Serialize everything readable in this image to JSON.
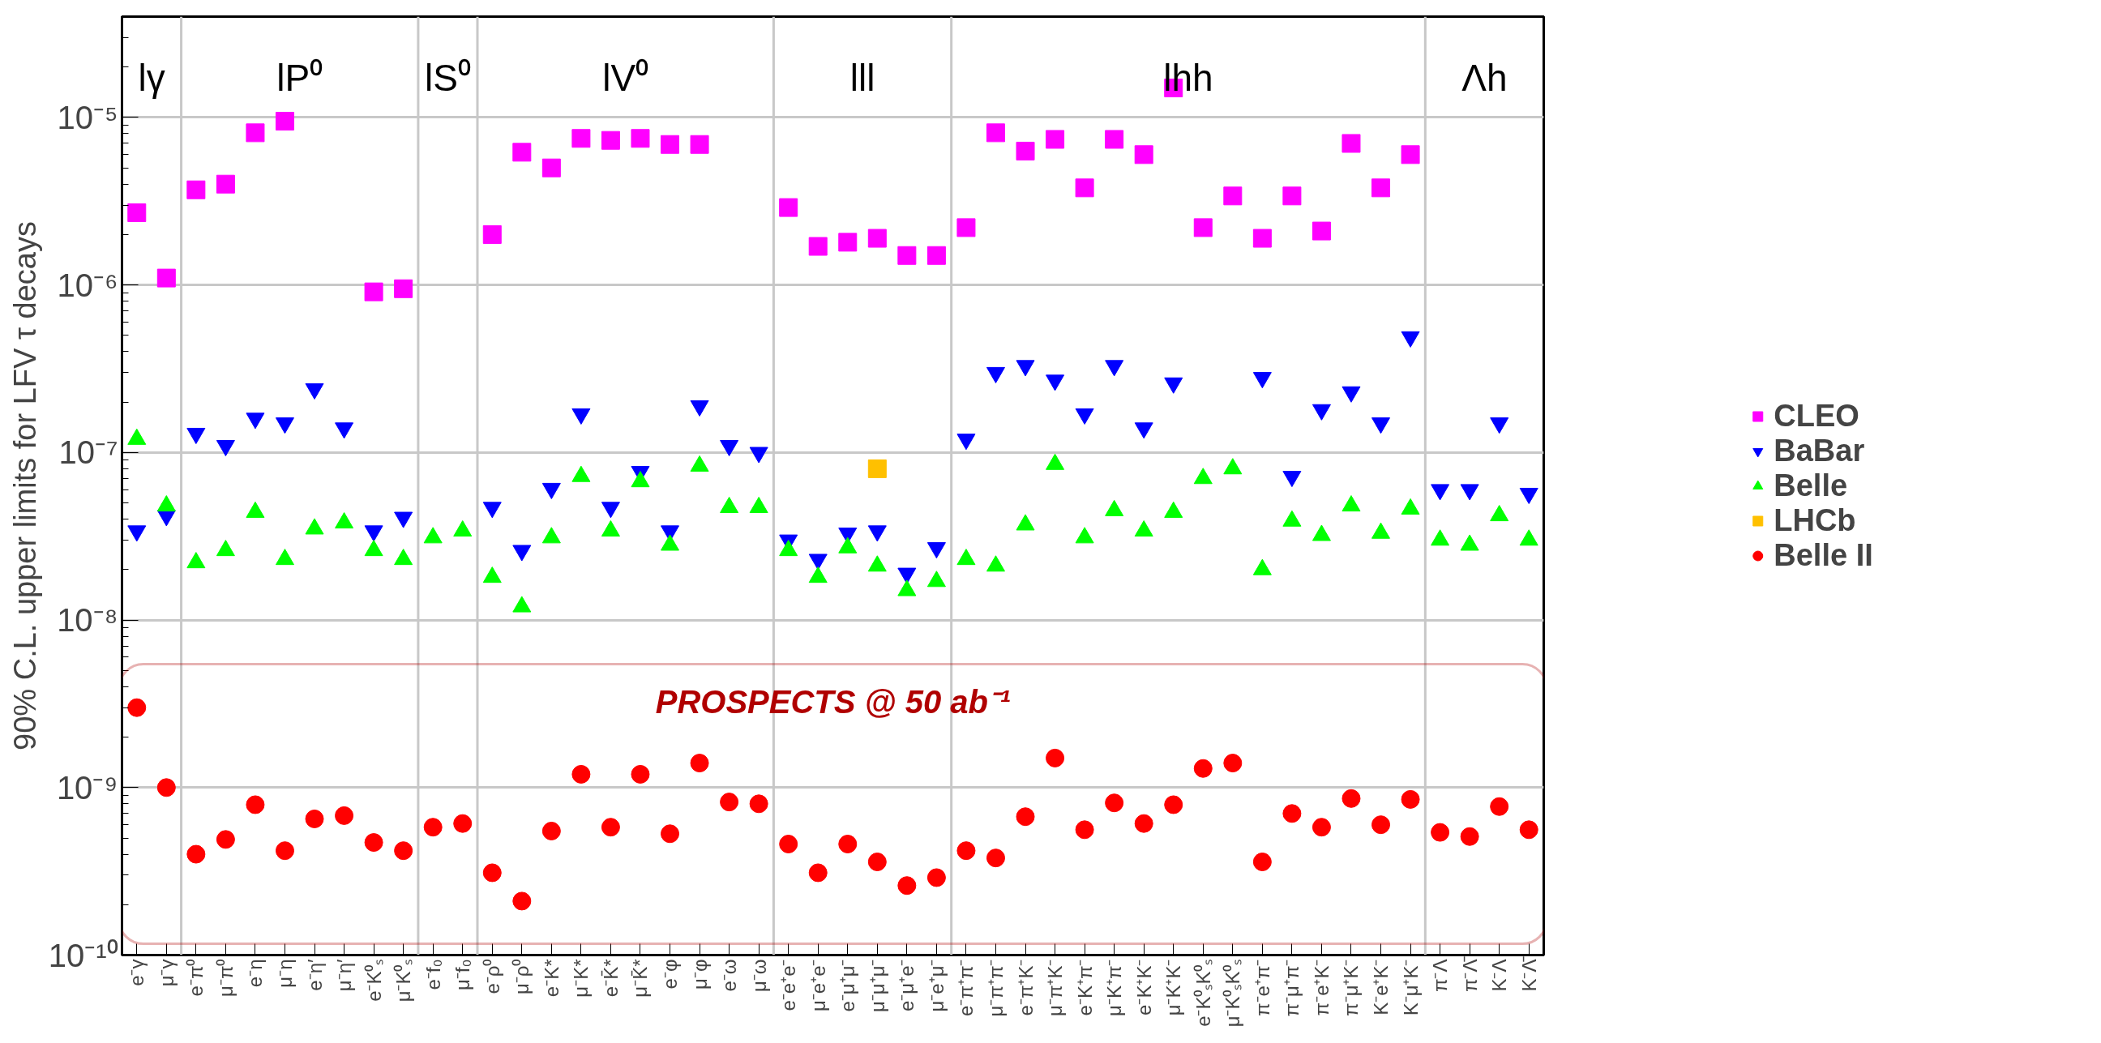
{
  "chart_data": {
    "type": "scatter",
    "ylabel": "90% C.L. upper limits for LFV τ decays",
    "categories": [
      "e⁻γ",
      "μ⁻γ",
      "e⁻π⁰",
      "μ⁻π⁰",
      "e⁻η",
      "μ⁻η",
      "e⁻η′",
      "μ⁻η′",
      "e⁻K⁰ₛ",
      "μ⁻K⁰ₛ",
      "e⁻f₀",
      "μ⁻f₀",
      "e⁻ρ⁰",
      "μ⁻ρ⁰",
      "e⁻K*",
      "μ⁻K*",
      "e⁻K̄*",
      "μ⁻K̄*",
      "e⁻φ",
      "μ⁻φ",
      "e⁻ω",
      "μ⁻ω",
      "e⁻e⁺e⁻",
      "μ⁻e⁺e⁻",
      "e⁻μ⁺μ⁻",
      "μ⁻μ⁺μ⁻",
      "e⁻μ⁺e⁻",
      "μ⁻e⁺μ⁻",
      "e⁻π⁺π⁻",
      "μ⁻π⁺π⁻",
      "e⁻π⁺K⁻",
      "μ⁻π⁺K⁻",
      "e⁻K⁺π⁻",
      "μ⁻K⁺π⁻",
      "e⁻K⁺K⁻",
      "μ⁻K⁺K⁻",
      "e⁻K⁰ₛK⁰ₛ",
      "μ⁻K⁰ₛK⁰ₛ",
      "π⁻e⁺π⁻",
      "π⁻μ⁺π⁻",
      "π⁻e⁺K⁻",
      "π⁻μ⁺K⁻",
      "K⁻e⁺K⁻",
      "K⁻μ⁺K⁻",
      "π⁻Λ",
      "π⁻Λ̄",
      "K⁻Λ",
      "K⁻Λ̄"
    ],
    "series": [
      {
        "name": "CLEO",
        "color": "#ff00ff",
        "marker": "square",
        "values": [
          2.7e-06,
          1.1e-06,
          3.7e-06,
          4e-06,
          8.1e-06,
          9.5e-06,
          null,
          null,
          9.1e-07,
          9.5e-07,
          null,
          null,
          2e-06,
          6.2e-06,
          5e-06,
          7.5e-06,
          7.3e-06,
          7.5e-06,
          6.9e-06,
          6.9e-06,
          null,
          null,
          2.9e-06,
          1.7e-06,
          1.8e-06,
          1.9e-06,
          1.5e-06,
          1.5e-06,
          2.2e-06,
          8.1e-06,
          6.3e-06,
          7.4e-06,
          3.8e-06,
          7.4e-06,
          6e-06,
          1.5e-05,
          2.2e-06,
          3.4e-06,
          1.9e-06,
          3.4e-06,
          2.1e-06,
          7e-06,
          3.8e-06,
          6e-06,
          null,
          null,
          null,
          null
        ]
      },
      {
        "name": "BaBar",
        "color": "#0000ff",
        "values": [
          3.4e-08,
          4.2e-08,
          1.3e-07,
          1.1e-07,
          1.6e-07,
          1.5e-07,
          2.4e-07,
          1.4e-07,
          3.4e-08,
          4.1e-08,
          null,
          null,
          4.7e-08,
          2.6e-08,
          6.1e-08,
          1.7e-07,
          4.7e-08,
          7.7e-08,
          3.4e-08,
          1.9e-07,
          1.1e-07,
          1e-07,
          3e-08,
          2.3e-08,
          3.3e-08,
          3.4e-08,
          1.9e-08,
          2.7e-08,
          1.2e-07,
          3e-07,
          3.3e-07,
          2.7e-07,
          1.7e-07,
          3.3e-07,
          1.4e-07,
          2.6e-07,
          null,
          null,
          2.8e-07,
          7.2e-08,
          1.8e-07,
          2.3e-07,
          1.5e-07,
          4.9e-07,
          6e-08,
          6e-08,
          1.5e-07,
          5.7e-08
        ]
      },
      {
        "name": "Belle",
        "color": "#00ff00",
        "marker": "triangle",
        "values": [
          1.2e-07,
          4.8e-08,
          2.2e-08,
          2.6e-08,
          4.4e-08,
          2.3e-08,
          3.5e-08,
          3.8e-08,
          2.6e-08,
          2.3e-08,
          3.1e-08,
          3.4e-08,
          1.8e-08,
          1.2e-08,
          3.1e-08,
          7.2e-08,
          3.4e-08,
          6.7e-08,
          2.8e-08,
          8.3e-08,
          4.7e-08,
          4.7e-08,
          2.6e-08,
          1.8e-08,
          2.7e-08,
          2.1e-08,
          1.5e-08,
          1.7e-08,
          2.3e-08,
          2.1e-08,
          3.7e-08,
          8.5e-08,
          3.1e-08,
          4.5e-08,
          3.4e-08,
          4.4e-08,
          7e-08,
          8e-08,
          2e-08,
          3.9e-08,
          3.2e-08,
          4.8e-08,
          3.3e-08,
          4.6e-08,
          3e-08,
          2.8e-08,
          4.2e-08,
          3e-08
        ]
      },
      {
        "name": "LHCb",
        "color": "#ffc000",
        "marker": "square",
        "values": [
          null,
          null,
          null,
          null,
          null,
          null,
          null,
          null,
          null,
          null,
          null,
          null,
          null,
          null,
          null,
          null,
          null,
          null,
          null,
          null,
          null,
          null,
          null,
          null,
          null,
          8e-08,
          null,
          null,
          null,
          null,
          null,
          null,
          null,
          null,
          null,
          null,
          null,
          null,
          null,
          null,
          null,
          null,
          null,
          null,
          null,
          null,
          null,
          null
        ]
      },
      {
        "name": "Belle II",
        "color": "#ff0000",
        "marker": "circle",
        "values": [
          3e-09,
          1e-09,
          4e-10,
          4.9e-10,
          7.9e-10,
          4.2e-10,
          6.5e-10,
          6.8e-10,
          4.7e-10,
          4.2e-10,
          5.8e-10,
          6.1e-10,
          3.1e-10,
          2.1e-10,
          5.5e-10,
          1.2e-09,
          5.8e-10,
          1.2e-09,
          5.3e-10,
          1.4e-09,
          8.2e-10,
          8e-10,
          4.6e-10,
          3.1e-10,
          4.6e-10,
          3.6e-10,
          2.6e-10,
          2.9e-10,
          4.2e-10,
          3.8e-10,
          6.7e-10,
          1.5e-09,
          5.6e-10,
          8.1e-10,
          6.1e-10,
          7.9e-10,
          1.3e-09,
          1.4e-09,
          3.6e-10,
          7e-10,
          5.8e-10,
          8.6e-10,
          6e-10,
          8.5e-10,
          5.4e-10,
          5.1e-10,
          7.7e-10,
          5.6e-10
        ]
      }
    ],
    "annotations": [
      "PROSPECTS @ 50 ab⁻¹",
      "lγ",
      "lP⁰",
      "lS⁰",
      "lV⁰",
      "lll",
      "lhh",
      "Λh"
    ],
    "log": "y",
    "ylim": [
      1e-10,
      4e-05
    ],
    "yticks": [
      {
        "value": 1e-10,
        "label": "10⁻¹⁰"
      },
      {
        "value": 1e-09,
        "label": "10⁻⁹"
      },
      {
        "value": 1e-08,
        "label": "10⁻⁸"
      },
      {
        "value": 1e-07,
        "label": "10⁻⁷"
      },
      {
        "value": 1e-06,
        "label": "10⁻⁶"
      },
      {
        "value": 1e-05,
        "label": "10⁻⁵"
      }
    ],
    "grid": "y",
    "legend": "right"
  }
}
